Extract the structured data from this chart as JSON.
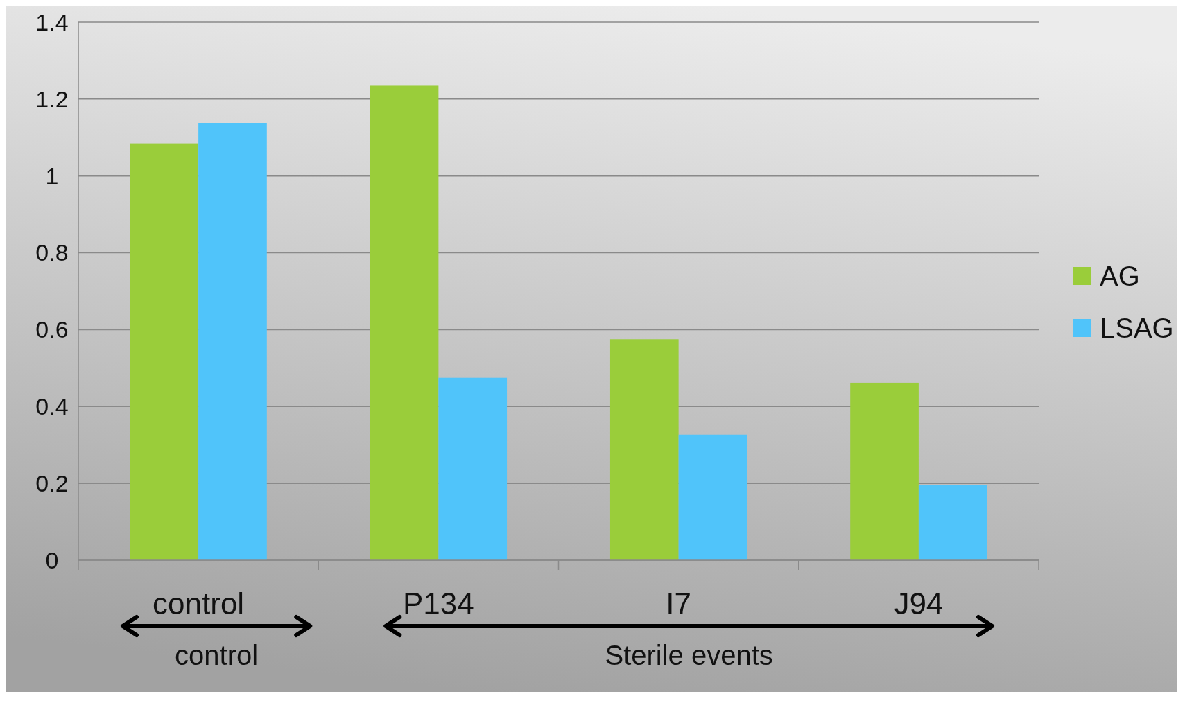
{
  "chart_data": {
    "type": "bar",
    "categories": [
      "control",
      "P134",
      "I7",
      "J94"
    ],
    "series": [
      {
        "name": "AG",
        "color": "#9acd3a",
        "values": [
          1.085,
          1.235,
          0.575,
          0.462
        ]
      },
      {
        "name": "LSAG",
        "color": "#50c4fa",
        "values": [
          1.137,
          0.475,
          0.327,
          0.196
        ]
      }
    ],
    "ylim": [
      0,
      1.4
    ],
    "yticks": [
      0,
      0.2,
      0.4,
      0.6,
      0.8,
      1,
      1.2,
      1.4
    ],
    "grid": "y",
    "legend": "right",
    "annotations": [
      "control",
      "Sterile events"
    ]
  }
}
